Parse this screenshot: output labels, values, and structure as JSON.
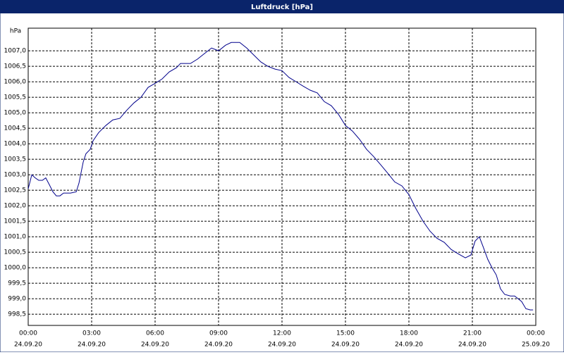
{
  "chart_data": {
    "type": "line",
    "title": "Luftdruck [hPa]",
    "ylabel": "hPa",
    "x": [
      0,
      0.17,
      0.33,
      0.5,
      0.67,
      0.83,
      1.0,
      1.17,
      1.33,
      1.5,
      1.67,
      2.0,
      2.27,
      2.4,
      2.6,
      2.73,
      2.93,
      3.07,
      3.33,
      3.67,
      4.0,
      4.33,
      4.67,
      5.0,
      5.33,
      5.67,
      6.0,
      6.33,
      6.67,
      7.0,
      7.2,
      7.67,
      8.0,
      8.33,
      8.67,
      9.0,
      9.33,
      9.6,
      10.0,
      10.33,
      10.67,
      11.0,
      11.33,
      11.67,
      12.0,
      12.33,
      12.67,
      13.0,
      13.33,
      13.67,
      14.0,
      14.33,
      14.67,
      15.0,
      15.33,
      15.67,
      16.0,
      16.33,
      16.67,
      17.0,
      17.33,
      17.67,
      18.0,
      18.33,
      18.67,
      19.0,
      19.33,
      19.67,
      20.0,
      20.33,
      20.67,
      20.93,
      21.13,
      21.33,
      21.53,
      21.73,
      21.93,
      22.13,
      22.33,
      22.53,
      22.8,
      23.0,
      23.33,
      23.53,
      23.73,
      23.87
    ],
    "series": [
      {
        "name": "Luftdruck",
        "color": "#00008b",
        "values": [
          1002.55,
          1003.0,
          1002.9,
          1002.82,
          1002.82,
          1002.9,
          1002.68,
          1002.45,
          1002.32,
          1002.32,
          1002.41,
          1002.41,
          1002.45,
          1002.73,
          1003.41,
          1003.68,
          1003.82,
          1004.1,
          1004.36,
          1004.59,
          1004.77,
          1004.82,
          1005.09,
          1005.32,
          1005.5,
          1005.82,
          1005.95,
          1006.09,
          1006.32,
          1006.45,
          1006.59,
          1006.59,
          1006.73,
          1006.91,
          1007.09,
          1007.0,
          1007.18,
          1007.27,
          1007.27,
          1007.09,
          1006.86,
          1006.64,
          1006.5,
          1006.41,
          1006.36,
          1006.14,
          1006.0,
          1005.86,
          1005.73,
          1005.64,
          1005.36,
          1005.23,
          1004.95,
          1004.59,
          1004.41,
          1004.14,
          1003.82,
          1003.59,
          1003.32,
          1003.05,
          1002.77,
          1002.64,
          1002.36,
          1001.91,
          1001.5,
          1001.18,
          1000.95,
          1000.82,
          1000.59,
          1000.45,
          1000.32,
          1000.41,
          1000.86,
          1001.0,
          1000.64,
          1000.27,
          1000.0,
          999.77,
          999.32,
          999.14,
          999.09,
          999.09,
          998.91,
          998.68,
          998.64,
          998.64
        ]
      }
    ],
    "xlim": [
      0,
      24
    ],
    "xticks": [
      {
        "value": 0,
        "label": "00:00"
      },
      {
        "value": 3,
        "label": "03:00"
      },
      {
        "value": 6,
        "label": "06:00"
      },
      {
        "value": 9,
        "label": "09:00"
      },
      {
        "value": 12,
        "label": "12:00"
      },
      {
        "value": 15,
        "label": "15:00"
      },
      {
        "value": 18,
        "label": "18:00"
      },
      {
        "value": 21,
        "label": "21:00"
      },
      {
        "value": 24,
        "label": "00:00"
      }
    ],
    "xtick_dates": [
      "24.09.20",
      "24.09.20",
      "24.09.20",
      "24.09.20",
      "24.09.20",
      "24.09.20",
      "24.09.20",
      "24.09.20",
      "25.09.20"
    ],
    "ylim": [
      998.14,
      1007.73
    ],
    "yticks": [
      {
        "value": 998.5,
        "label": "998,5"
      },
      {
        "value": 999,
        "label": "999,0"
      },
      {
        "value": 999.5,
        "label": "999,5"
      },
      {
        "value": 1000,
        "label": "1000,0"
      },
      {
        "value": 1000.5,
        "label": "1000,5"
      },
      {
        "value": 1001,
        "label": "1001,0"
      },
      {
        "value": 1001.5,
        "label": "1001,5"
      },
      {
        "value": 1002,
        "label": "1002,0"
      },
      {
        "value": 1002.5,
        "label": "1002,5"
      },
      {
        "value": 1003,
        "label": "1003,0"
      },
      {
        "value": 1003.5,
        "label": "1003,5"
      },
      {
        "value": 1004,
        "label": "1004,0"
      },
      {
        "value": 1004.5,
        "label": "1004,5"
      },
      {
        "value": 1005,
        "label": "1005,0"
      },
      {
        "value": 1005.5,
        "label": "1005,5"
      },
      {
        "value": 1006,
        "label": "1006,0"
      },
      {
        "value": 1006.5,
        "label": "1006,5"
      },
      {
        "value": 1007,
        "label": "1007,0"
      }
    ],
    "grid": true
  }
}
